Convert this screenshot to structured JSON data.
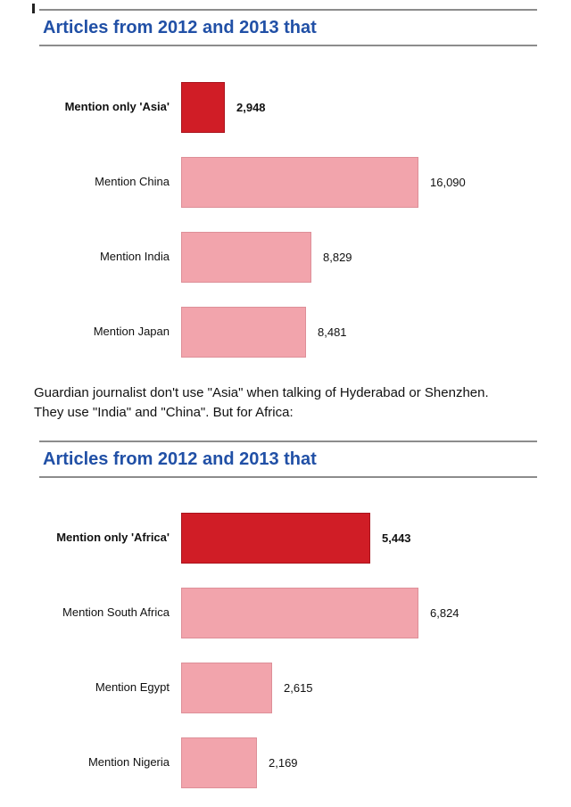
{
  "page": {
    "paragraph": "Guardian journalist don't use \"Asia\" when talking of Hyderabad or Shenzhen. They use \"India\" and \"China\". But for Africa:"
  },
  "theme": {
    "heading_blue": "#2150a6",
    "rule_gray": "#8c8c8c"
  },
  "chart_data": [
    {
      "type": "bar",
      "orientation": "horizontal",
      "title": "Articles from 2012 and 2013 that",
      "categories": [
        "Mention only 'Asia'",
        "Mention China",
        "Mention India",
        "Mention Japan"
      ],
      "values": [
        2948,
        16090,
        8829,
        8481
      ],
      "value_labels": [
        "2,948",
        "16,090",
        "8,829",
        "8,481"
      ],
      "highlight_index": 0,
      "bar_color": "#f2a4ac",
      "bar_border": "#dd8f98",
      "highlight_color": "#d01d26",
      "highlight_border": "#a9141d",
      "xlim": [
        0,
        16090
      ],
      "grid": false,
      "legend": false
    },
    {
      "type": "bar",
      "orientation": "horizontal",
      "title": "Articles from 2012 and 2013 that",
      "categories": [
        "Mention only 'Africa'",
        "Mention South Africa",
        "Mention Egypt",
        "Mention Nigeria"
      ],
      "values": [
        5443,
        6824,
        2615,
        2169
      ],
      "value_labels": [
        "5,443",
        "6,824",
        "2,615",
        "2,169"
      ],
      "highlight_index": 0,
      "bar_color": "#f2a4ac",
      "bar_border": "#dd8f98",
      "highlight_color": "#d01d26",
      "highlight_border": "#a9141d",
      "xlim": [
        0,
        6824
      ],
      "grid": false,
      "legend": false
    }
  ]
}
